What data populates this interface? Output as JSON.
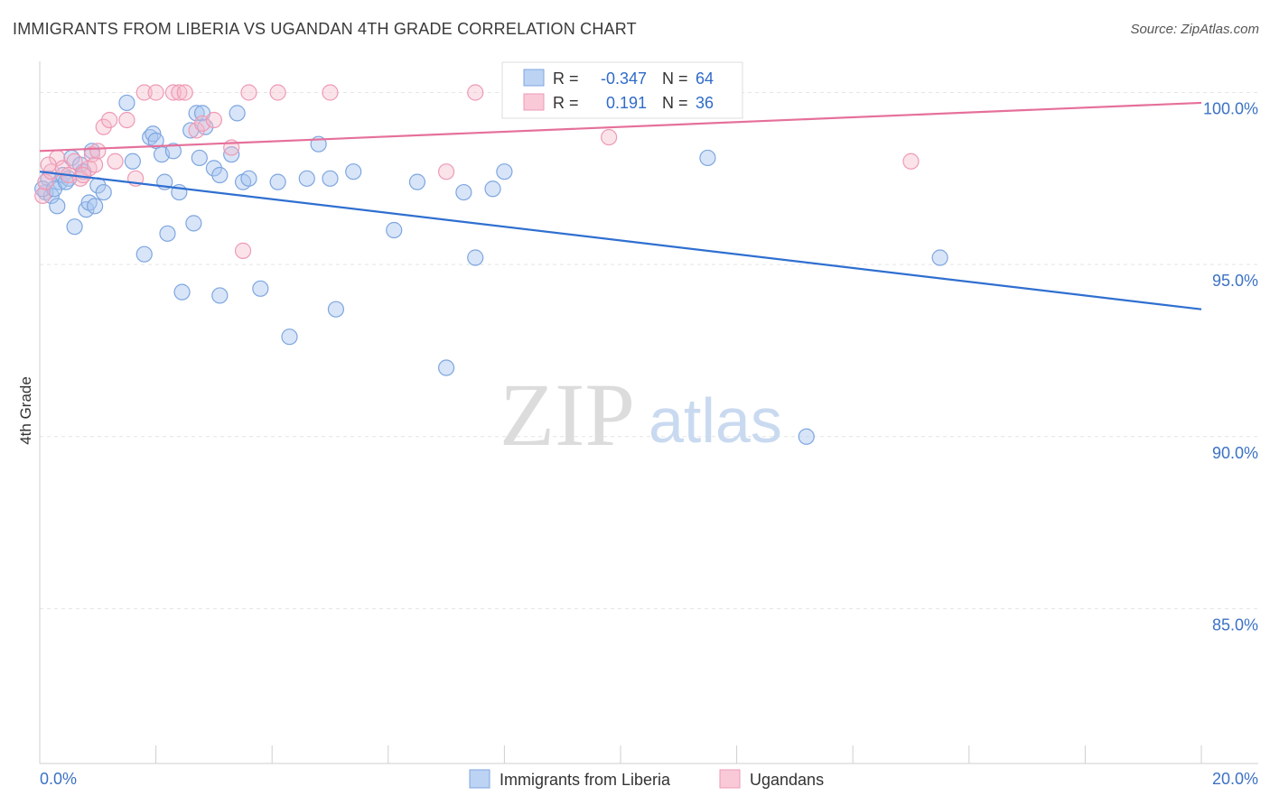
{
  "title": "IMMIGRANTS FROM LIBERIA VS UGANDAN 4TH GRADE CORRELATION CHART",
  "source": "Source: ZipAtlas.com",
  "watermark": {
    "zip": "ZIP",
    "atlas": "atlas"
  },
  "legend_stats": [
    {
      "r_label": "R =",
      "r_value": "-0.347",
      "n_label": "N =",
      "n_value": "64",
      "color": "#a9c5ef"
    },
    {
      "r_label": "R =",
      "r_value": "0.191",
      "n_label": "N =",
      "n_value": "36",
      "color": "#f5b8cb"
    }
  ],
  "bottom_legend": [
    {
      "label": "Immigrants from Liberia",
      "color": "#a9c5ef"
    },
    {
      "label": "Ugandans",
      "color": "#f5b8cb"
    }
  ],
  "chart_data": {
    "type": "scatter",
    "title": "IMMIGRANTS FROM LIBERIA VS UGANDAN 4TH GRADE CORRELATION CHART",
    "xlabel": "",
    "ylabel": "4th Grade",
    "xlim": [
      0,
      20
    ],
    "ylim": [
      80.5,
      100.8
    ],
    "x_tick_labels": [
      "0.0%",
      "20.0%"
    ],
    "y_ticks": [
      85,
      90,
      95,
      100
    ],
    "y_tick_labels": [
      "85.0%",
      "90.0%",
      "95.0%",
      "100.0%"
    ],
    "grid": true,
    "legend_placement": "top-center and bottom",
    "series": [
      {
        "name": "Immigrants from Liberia",
        "color": "#6f9fe0",
        "trend": {
          "x": [
            0,
            20
          ],
          "y": [
            97.7,
            93.7
          ]
        },
        "points": [
          [
            0.1,
            97.1
          ],
          [
            0.15,
            97.5
          ],
          [
            0.2,
            97.0
          ],
          [
            0.3,
            96.7
          ],
          [
            0.35,
            97.4
          ],
          [
            0.4,
            97.6
          ],
          [
            0.5,
            97.5
          ],
          [
            0.55,
            98.1
          ],
          [
            0.6,
            96.1
          ],
          [
            0.7,
            97.9
          ],
          [
            0.75,
            97.7
          ],
          [
            0.8,
            96.6
          ],
          [
            0.85,
            96.8
          ],
          [
            0.9,
            98.3
          ],
          [
            0.95,
            96.7
          ],
          [
            1.0,
            97.3
          ],
          [
            1.1,
            97.1
          ],
          [
            1.5,
            99.7
          ],
          [
            1.6,
            98.0
          ],
          [
            1.8,
            95.3
          ],
          [
            1.9,
            98.7
          ],
          [
            1.95,
            98.8
          ],
          [
            2.0,
            98.6
          ],
          [
            2.1,
            98.2
          ],
          [
            2.15,
            97.4
          ],
          [
            2.2,
            95.9
          ],
          [
            2.3,
            98.3
          ],
          [
            2.4,
            97.1
          ],
          [
            2.45,
            94.2
          ],
          [
            2.6,
            98.9
          ],
          [
            2.65,
            96.2
          ],
          [
            2.7,
            99.4
          ],
          [
            2.75,
            98.1
          ],
          [
            2.8,
            99.4
          ],
          [
            2.85,
            99.0
          ],
          [
            3.0,
            97.8
          ],
          [
            3.1,
            94.1
          ],
          [
            3.1,
            97.6
          ],
          [
            3.3,
            98.2
          ],
          [
            3.4,
            99.4
          ],
          [
            3.5,
            97.4
          ],
          [
            3.6,
            97.5
          ],
          [
            3.8,
            94.3
          ],
          [
            4.1,
            97.4
          ],
          [
            4.3,
            92.9
          ],
          [
            4.6,
            97.5
          ],
          [
            4.8,
            98.5
          ],
          [
            5.0,
            97.5
          ],
          [
            5.1,
            93.7
          ],
          [
            5.4,
            97.7
          ],
          [
            6.1,
            96.0
          ],
          [
            6.5,
            97.4
          ],
          [
            7.0,
            92.0
          ],
          [
            7.3,
            97.1
          ],
          [
            7.5,
            95.2
          ],
          [
            7.8,
            97.2
          ],
          [
            8.0,
            97.7
          ],
          [
            9.5,
            100.0
          ],
          [
            11.5,
            98.1
          ],
          [
            13.2,
            90.0
          ],
          [
            15.5,
            95.2
          ],
          [
            0.05,
            97.2
          ],
          [
            0.25,
            97.2
          ],
          [
            0.45,
            97.4
          ]
        ]
      },
      {
        "name": "Ugandans",
        "color": "#ef93b1",
        "trend": {
          "x": [
            0,
            20
          ],
          "y": [
            98.3,
            99.7
          ]
        },
        "points": [
          [
            0.05,
            97.0
          ],
          [
            0.1,
            97.4
          ],
          [
            0.2,
            97.7
          ],
          [
            0.3,
            98.1
          ],
          [
            0.4,
            97.8
          ],
          [
            0.5,
            97.6
          ],
          [
            0.6,
            98.0
          ],
          [
            0.7,
            97.5
          ],
          [
            0.85,
            97.8
          ],
          [
            0.9,
            98.2
          ],
          [
            0.95,
            97.9
          ],
          [
            1.0,
            98.3
          ],
          [
            1.1,
            99.0
          ],
          [
            1.2,
            99.2
          ],
          [
            1.3,
            98.0
          ],
          [
            1.5,
            99.2
          ],
          [
            1.65,
            97.5
          ],
          [
            1.8,
            100.0
          ],
          [
            2.0,
            100.0
          ],
          [
            2.3,
            100.0
          ],
          [
            2.4,
            100.0
          ],
          [
            2.5,
            100.0
          ],
          [
            2.7,
            98.9
          ],
          [
            2.8,
            99.1
          ],
          [
            3.0,
            99.2
          ],
          [
            3.3,
            98.4
          ],
          [
            3.5,
            95.4
          ],
          [
            3.6,
            100.0
          ],
          [
            4.1,
            100.0
          ],
          [
            5.0,
            100.0
          ],
          [
            7.0,
            97.7
          ],
          [
            7.5,
            100.0
          ],
          [
            9.8,
            98.7
          ],
          [
            15.0,
            98.0
          ],
          [
            0.15,
            97.9
          ],
          [
            0.75,
            97.6
          ]
        ]
      }
    ]
  }
}
